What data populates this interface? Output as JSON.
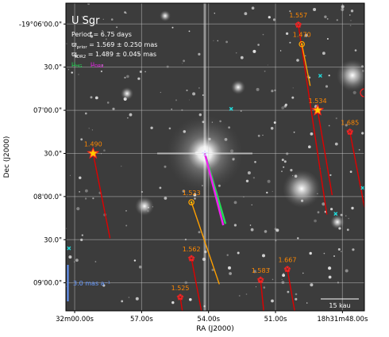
{
  "chart_data": {
    "type": "scatter",
    "title": "U Sgr",
    "annotations": {
      "period": "Period = 6.75 days",
      "parallax_prior_prefix": "ϖ",
      "parallax_prior_sub": "prior",
      "parallax_prior_value": " = 1.569 ± 0.250 mas",
      "parallax_dr2_prefix": "ϖ",
      "parallax_dr2_sub": "DR2",
      "parallax_dr2_value": " = 1.489 ± 0.045 mas",
      "mu_hg_prefix": "μ",
      "mu_hg_sub": "HG",
      "mu_dr2_prefix": "μ",
      "mu_dr2_sub": "DR2",
      "pm_scale": "3.0 mas a⁻¹",
      "length_scale": "15 kau"
    },
    "xlabel": "RA (J2000)",
    "ylabel": "Dec (J2000)",
    "x_ticks": [
      "32m00.00s",
      "57.00s",
      "54.00s",
      "51.00s",
      "18h31m48.00s"
    ],
    "y_ticks": [
      "-19°06'00.0\"",
      "30.0\"",
      "07'00.0\"",
      "30.0\"",
      "08'00.0\"",
      "30.0\"",
      "09'00.0\""
    ],
    "grid": true,
    "colors": {
      "mu_hg": "#22dd55",
      "mu_dr2": "#ee22ee",
      "star_marker": "#ff2222",
      "star_fill": "#ffcc00",
      "highlight_marker": "#ffa500",
      "field_star": "#22dddd",
      "pm_scale": "#6699ff",
      "label": "#ff8800"
    },
    "stars": [
      {
        "label": "1.557",
        "kind": "star",
        "ra_s": 49.51,
        "dec_s": -360.5,
        "dra": 1.3,
        "ddec": 132,
        "line": "#e00000"
      },
      {
        "label": "1.470",
        "kind": "highlight",
        "ra_s": 49.35,
        "dec_s": -374,
        "dra": 0.38,
        "ddec": 29,
        "line": "#ffa000"
      },
      {
        "label": "1.534",
        "kind": "bigstar",
        "ra_s": 48.63,
        "dec_s": -420,
        "dra": 0.66,
        "ddec": 59,
        "line": "#e00000"
      },
      {
        "label": "1.685",
        "kind": "star",
        "ra_s": 47.16,
        "dec_s": -435,
        "dra": 0.73,
        "ddec": 58,
        "line": "#e00000"
      },
      {
        "label": "1.490",
        "kind": "bigstar",
        "ra_s": 58.86,
        "dec_s": -450,
        "dra": 0.77,
        "ddec": 59,
        "line": "#e00000"
      },
      {
        "label": "1.523",
        "kind": "highlight",
        "ra_s": 54.38,
        "dec_s": -484,
        "dra": 1.27,
        "ddec": 57,
        "line": "#ffa000"
      },
      {
        "label": "1.562",
        "kind": "star",
        "ra_s": 54.38,
        "dec_s": -523,
        "dra": 0.72,
        "ddec": 58,
        "line": "#e00000"
      },
      {
        "label": "1.667",
        "kind": "star",
        "ra_s": 50.01,
        "dec_s": -530.5,
        "dra": 0.48,
        "ddec": 42,
        "line": "#e00000"
      },
      {
        "label": "1.583",
        "kind": "star",
        "ra_s": 51.23,
        "dec_s": -538,
        "dra": 0.2,
        "ddec": 30,
        "line": "#e00000"
      },
      {
        "label": "1.525",
        "kind": "star",
        "ra_s": 54.89,
        "dec_s": -550,
        "dra": 0.25,
        "ddec": 25,
        "line": "#e00000"
      }
    ],
    "target": {
      "ra_s": 53.77,
      "dec_s": -450,
      "mu_hg_dra": 0.94,
      "mu_hg_ddec": 49,
      "mu_dr2_dra": 0.84,
      "mu_dr2_ddec": 50
    },
    "field_stars": [
      {
        "ra_s": 48.51,
        "dec_s": -396
      },
      {
        "ra_s": 52.57,
        "dec_s": -419
      },
      {
        "ra_s": 46.58,
        "dec_s": -474
      },
      {
        "ra_s": 47.81,
        "dec_s": -492
      },
      {
        "ra_s": 59.96,
        "dec_s": -516
      }
    ],
    "xlim": [
      60.1,
      46.5
    ],
    "ylim": [
      -559.5,
      -345.5
    ]
  }
}
